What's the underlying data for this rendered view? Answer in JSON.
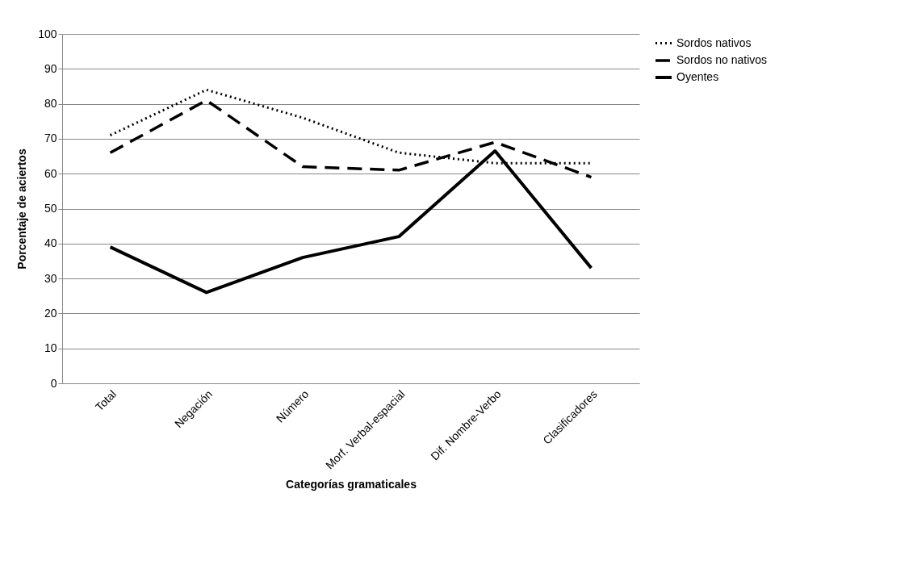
{
  "chart_data": {
    "type": "line",
    "xlabel": "Categorías gramaticales",
    "ylabel": "Porcentaje de aciertos",
    "categories": [
      "Total",
      "Negación",
      "Número",
      "Morf. Verbal-espacial",
      "Dif. Nombre-Verbo",
      "Clasificadores"
    ],
    "series": [
      {
        "name": "Sordos nativos",
        "color": "#000000",
        "line_style": "dotted",
        "values": [
          71,
          84,
          76,
          66,
          63,
          63
        ]
      },
      {
        "name": "Sordos no nativos",
        "color": "#000000",
        "line_style": "dashed",
        "values": [
          66,
          81,
          62,
          61,
          69,
          59
        ]
      },
      {
        "name": "Oyentes",
        "color": "#000000",
        "line_style": "solid",
        "values": [
          39,
          26,
          36,
          42,
          66.5,
          33
        ]
      }
    ],
    "ylim": [
      0,
      100
    ],
    "yticks": [
      0,
      10,
      20,
      30,
      40,
      50,
      60,
      70,
      80,
      90,
      100
    ],
    "grid": "y",
    "legend": "right",
    "marker": "none"
  }
}
